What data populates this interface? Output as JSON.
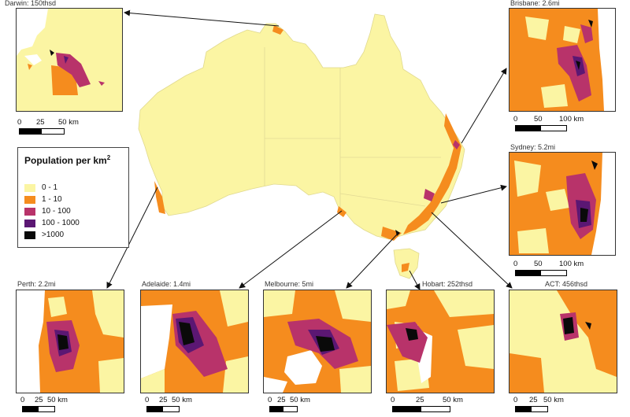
{
  "legend": {
    "title": "Population per km",
    "title_sup": "2",
    "classes": [
      {
        "label": "0 - 1",
        "color": "#fbf5a3"
      },
      {
        "label": "1 - 10",
        "color": "#f58c1e"
      },
      {
        "label": "10 - 100",
        "color": "#b8336a"
      },
      {
        "label": "100 - 1000",
        "color": "#5b1773"
      },
      {
        "label": ">1000",
        "color": "#0a0a0a"
      }
    ]
  },
  "insets": {
    "darwin": {
      "title": "Darwin: 150thsd",
      "ticks": [
        "0",
        "25",
        "50 km"
      ]
    },
    "brisbane": {
      "title": "Brisbane: 2.6mi",
      "ticks": [
        "0",
        "50",
        "100 km"
      ]
    },
    "sydney": {
      "title": "Sydney: 5.2mi",
      "ticks": [
        "0",
        "50",
        "100 km"
      ]
    },
    "perth": {
      "title": "Perth: 2.2mi",
      "ticks": [
        "0",
        "25",
        "50 km"
      ]
    },
    "adelaide": {
      "title": "Adelaide: 1.4mi",
      "ticks": [
        "0",
        "25",
        "50 km"
      ]
    },
    "melbourne": {
      "title": "Melbourne: 5mi",
      "ticks": [
        "0",
        "25",
        "50 km"
      ]
    },
    "hobart": {
      "title": "Hobart: 252thsd",
      "ticks": [
        "0",
        "25",
        "50 km"
      ]
    },
    "act": {
      "title": "ACT: 456thsd",
      "ticks": [
        "0",
        "25",
        "50 km"
      ]
    }
  },
  "colors": {
    "land": "#fbf5a3",
    "low": "#f58c1e",
    "mid": "#b8336a",
    "high": "#5b1773",
    "dense": "#0a0a0a",
    "border": "#d9d28a"
  }
}
